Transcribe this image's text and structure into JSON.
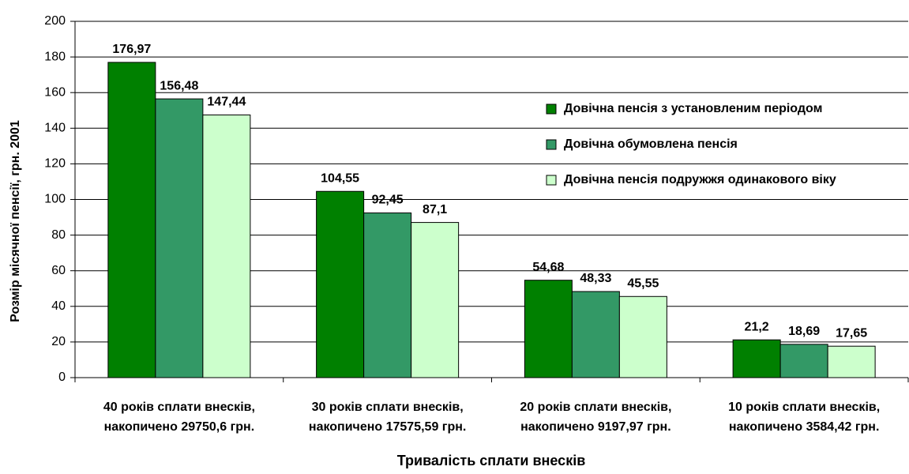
{
  "chart_data": {
    "type": "bar",
    "y_label": "Розмір місячної пенсії, грн. 2001",
    "x_label": "Тривалість сплати внесків",
    "categories": [
      [
        "40 років сплати внесків,",
        "накопичено 29750,6 грн."
      ],
      [
        "30 років сплати внесків,",
        "накопичено 17575,59 грн."
      ],
      [
        "20 років сплати внесків,",
        "накопичено 9197,97 грн."
      ],
      [
        "10 років сплати внесків,",
        "накопичено 3584,42 грн."
      ]
    ],
    "series": [
      {
        "name": "Довічна пенсія з установленим періодом",
        "color": "#008000",
        "values": [
          176.97,
          104.55,
          54.68,
          21.2
        ],
        "value_labels": [
          "176,97",
          "104,55",
          "54,68",
          "21,2"
        ]
      },
      {
        "name": "Довічна обумовлена пенсія",
        "color": "#339966",
        "values": [
          156.48,
          92.45,
          48.33,
          18.69
        ],
        "value_labels": [
          "156,48",
          "92,45",
          "48,33",
          "18,69"
        ]
      },
      {
        "name": "Довічна пенсія подружжя одинакового віку",
        "color": "#ccffcc",
        "values": [
          147.44,
          87.1,
          45.55,
          17.65
        ],
        "value_labels": [
          "147,44",
          "87,1",
          "45,55",
          "17,65"
        ]
      }
    ],
    "ylim": [
      0,
      200
    ],
    "yticks": [
      0,
      20,
      40,
      60,
      80,
      100,
      120,
      140,
      160,
      180,
      200
    ],
    "grid": true,
    "legend": "upper right"
  }
}
